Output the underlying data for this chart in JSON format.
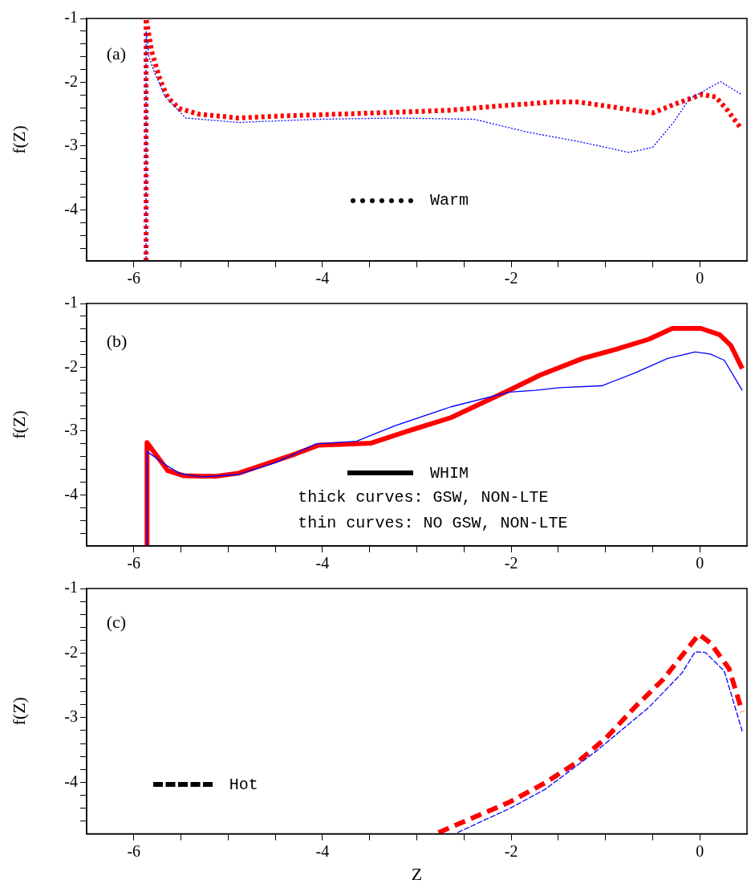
{
  "chart_data": [
    {
      "type": "line",
      "ylabel": "f(Z)",
      "xlim": [
        -6.5,
        0.5
      ],
      "ylim": [
        -4.8,
        -1
      ],
      "xticks": [
        -6,
        {
          "value": -5.5,
          "label": null
        },
        {
          "value": -5,
          "label": null
        },
        {
          "value": -4.5,
          "label": null
        },
        -4,
        {
          "value": -3.5,
          "label": null
        },
        {
          "value": -3,
          "label": null
        },
        {
          "value": -2.5,
          "label": null
        },
        -2,
        {
          "value": -1.5,
          "label": null
        },
        {
          "value": -1,
          "label": null
        },
        {
          "value": -0.5,
          "label": null
        },
        0
      ],
      "yticks": [
        {
          "value": -4.6,
          "label": null
        },
        {
          "value": -4.4,
          "label": null
        },
        {
          "value": -4.2,
          "label": null
        },
        -4,
        {
          "value": -3.8,
          "label": null
        },
        {
          "value": -3.6,
          "label": null
        },
        {
          "value": -3.4,
          "label": null
        },
        {
          "value": -3.2,
          "label": null
        },
        -3,
        {
          "value": -2.8,
          "label": null
        },
        {
          "value": -2.6,
          "label": null
        },
        {
          "value": -2.4,
          "label": null
        },
        {
          "value": -2.2,
          "label": null
        },
        -2,
        {
          "value": -1.8,
          "label": null
        },
        {
          "value": -1.6,
          "label": null
        },
        {
          "value": -1.4,
          "label": null
        },
        {
          "value": -1.2,
          "label": null
        },
        -1
      ],
      "grid": false,
      "legend": false,
      "marker": "none",
      "line_style": "dotted",
      "annotations": [
        "(a)",
        "Warm"
      ],
      "series": [
        {
          "color": "#0000ff",
          "x": [
            -5.87,
            -5.87,
            -5.84,
            -5.78,
            -5.72,
            -5.67,
            -5.45,
            -4.89,
            -4.06,
            -3.225,
            -2.39,
            -1.83,
            -1.28,
            -0.75,
            -0.5,
            -0.28,
            -0.11,
            0.22,
            0.44
          ],
          "values": [
            -4.8,
            -1.2,
            -1.6,
            -1.85,
            -2.05,
            -2.22,
            -2.56,
            -2.63,
            -2.58,
            -2.56,
            -2.58,
            -2.78,
            -2.93,
            -3.1,
            -3.02,
            -2.63,
            -2.26,
            -1.99,
            -2.19
          ]
        },
        {
          "color": "#ff0000",
          "x": [
            -5.87,
            -5.87,
            -5.81,
            -5.72,
            -5.64,
            -5.52,
            -5.31,
            -4.89,
            -4.47,
            -3.225,
            -2.67,
            -2.12,
            -1.56,
            -1.28,
            -0.87,
            -0.5,
            -0.225,
            0.025,
            0.17,
            0.3,
            0.44
          ],
          "values": [
            -4.8,
            -1,
            -1.52,
            -1.97,
            -2.24,
            -2.41,
            -2.5,
            -2.56,
            -2.53,
            -2.47,
            -2.44,
            -2.37,
            -2.31,
            -2.31,
            -2.4,
            -2.48,
            -2.32,
            -2.19,
            -2.23,
            -2.45,
            -2.73
          ]
        }
      ]
    },
    {
      "type": "line",
      "ylabel": "f(Z)",
      "xlim": [
        -6.5,
        0.5
      ],
      "ylim": [
        -4.8,
        -1
      ],
      "xticks": [
        -6,
        {
          "value": -5.5,
          "label": null
        },
        {
          "value": -5,
          "label": null
        },
        {
          "value": -4.5,
          "label": null
        },
        -4,
        {
          "value": -3.5,
          "label": null
        },
        {
          "value": -3,
          "label": null
        },
        {
          "value": -2.5,
          "label": null
        },
        -2,
        {
          "value": -1.5,
          "label": null
        },
        {
          "value": -1,
          "label": null
        },
        {
          "value": -0.5,
          "label": null
        },
        0
      ],
      "yticks": [
        {
          "value": -4.6,
          "label": null
        },
        {
          "value": -4.4,
          "label": null
        },
        {
          "value": -4.2,
          "label": null
        },
        -4,
        {
          "value": -3.8,
          "label": null
        },
        {
          "value": -3.6,
          "label": null
        },
        {
          "value": -3.4,
          "label": null
        },
        {
          "value": -3.2,
          "label": null
        },
        -3,
        {
          "value": -2.8,
          "label": null
        },
        {
          "value": -2.6,
          "label": null
        },
        {
          "value": -2.4,
          "label": null
        },
        {
          "value": -2.2,
          "label": null
        },
        -2,
        {
          "value": -1.8,
          "label": null
        },
        {
          "value": -1.6,
          "label": null
        },
        {
          "value": -1.4,
          "label": null
        },
        {
          "value": -1.2,
          "label": null
        },
        -1
      ],
      "grid": false,
      "legend": false,
      "marker": "none",
      "line_style": "solid",
      "annotations": [
        "(b)",
        "WHIM",
        "thick curves: GSW, NON-LTE",
        "thin curves: NO GSW, NON-LTE"
      ],
      "series": [
        {
          "color": "#0000ff",
          "x": [
            -5.86,
            -5.86,
            -5.67,
            -5.52,
            -5.29,
            -4.89,
            -4.49,
            -4.07,
            -3.64,
            -3.24,
            -2.64,
            -2.02,
            -1.74,
            -1.49,
            -1.04,
            -0.69,
            -0.34,
            -0.05,
            0.11,
            0.26,
            0.45
          ],
          "values": [
            -4.8,
            -3.32,
            -3.52,
            -3.66,
            -3.72,
            -3.68,
            -3.49,
            -3.2,
            -3.16,
            -2.92,
            -2.62,
            -2.39,
            -2.36,
            -2.32,
            -2.29,
            -2.09,
            -1.86,
            -1.76,
            -1.79,
            -1.89,
            -2.36
          ]
        },
        {
          "color": "#ff0000",
          "x": [
            -5.86,
            -5.86,
            -5.64,
            -5.47,
            -5.14,
            -4.89,
            -4.59,
            -4.29,
            -4.04,
            -3.49,
            -3.14,
            -2.64,
            -2.02,
            -1.69,
            -1.24,
            -0.89,
            -0.54,
            -0.29,
            0.01,
            0.21,
            0.33,
            0.45
          ],
          "values": [
            -4.8,
            -3.18,
            -3.62,
            -3.7,
            -3.71,
            -3.66,
            -3.51,
            -3.36,
            -3.22,
            -3.19,
            -3.02,
            -2.79,
            -2.36,
            -2.12,
            -1.86,
            -1.72,
            -1.56,
            -1.39,
            -1.39,
            -1.49,
            -1.66,
            -2.02
          ]
        }
      ]
    },
    {
      "type": "line",
      "xlabel": "Z",
      "ylabel": "f(Z)",
      "xlim": [
        -6.5,
        0.5
      ],
      "ylim": [
        -4.8,
        -1
      ],
      "xticks": [
        -6,
        {
          "value": -5.5,
          "label": null
        },
        {
          "value": -5,
          "label": null
        },
        {
          "value": -4.5,
          "label": null
        },
        -4,
        {
          "value": -3.5,
          "label": null
        },
        {
          "value": -3,
          "label": null
        },
        {
          "value": -2.5,
          "label": null
        },
        -2,
        {
          "value": -1.5,
          "label": null
        },
        {
          "value": -1,
          "label": null
        },
        {
          "value": -0.5,
          "label": null
        },
        0
      ],
      "yticks": [
        {
          "value": -4.6,
          "label": null
        },
        {
          "value": -4.4,
          "label": null
        },
        {
          "value": -4.2,
          "label": null
        },
        -4,
        {
          "value": -3.8,
          "label": null
        },
        {
          "value": -3.6,
          "label": null
        },
        {
          "value": -3.4,
          "label": null
        },
        {
          "value": -3.2,
          "label": null
        },
        -3,
        {
          "value": -2.8,
          "label": null
        },
        {
          "value": -2.6,
          "label": null
        },
        {
          "value": -2.4,
          "label": null
        },
        {
          "value": -2.2,
          "label": null
        },
        -2,
        {
          "value": -1.8,
          "label": null
        },
        {
          "value": -1.6,
          "label": null
        },
        {
          "value": -1.4,
          "label": null
        },
        {
          "value": -1.2,
          "label": null
        },
        -1
      ],
      "grid": false,
      "legend": false,
      "marker": "none",
      "line_style": "dashed",
      "annotations": [
        "(c)",
        "Hot"
      ],
      "series": [
        {
          "color": "#0000ff",
          "x": [
            -2.57,
            -2.02,
            -1.64,
            -1.09,
            -0.54,
            -0.19,
            -0.05,
            0.06,
            0.26,
            0.45
          ],
          "values": [
            -4.78,
            -4.41,
            -4.11,
            -3.51,
            -2.84,
            -2.31,
            -1.98,
            -1.99,
            -2.28,
            -3.21
          ]
        },
        {
          "color": "#ff0000",
          "x": [
            -2.77,
            -2.39,
            -2.02,
            -1.64,
            -1.29,
            -0.99,
            -0.69,
            -0.39,
            -0.19,
            -0.01,
            0.11,
            0.31,
            0.45
          ],
          "values": [
            -4.78,
            -4.54,
            -4.31,
            -4.01,
            -3.68,
            -3.31,
            -2.84,
            -2.41,
            -2.04,
            -1.71,
            -1.84,
            -2.24,
            -2.91
          ]
        }
      ]
    }
  ]
}
